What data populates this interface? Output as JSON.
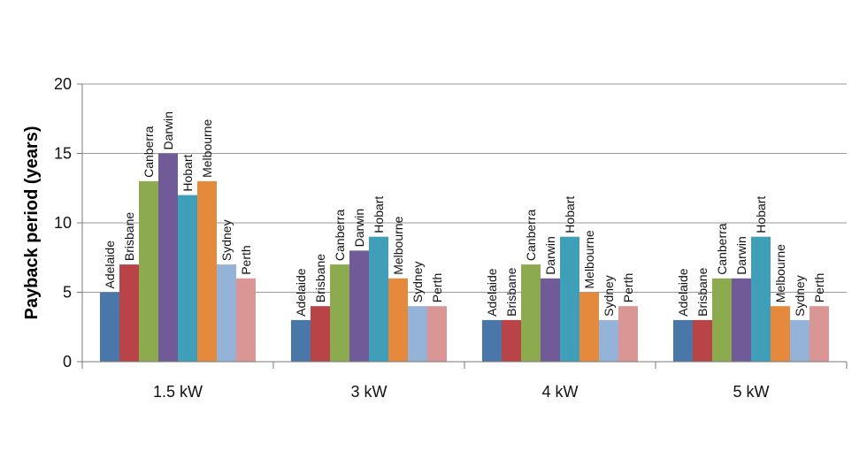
{
  "chart_data": {
    "type": "bar",
    "title": "",
    "xlabel": "",
    "ylabel": "Payback period (years)",
    "ylim": [
      0,
      20
    ],
    "yticks": [
      0,
      5,
      10,
      15,
      20
    ],
    "grid": true,
    "legend": "none",
    "categories": [
      "1.5 kW",
      "3 kW",
      "4 kW",
      "5 kW"
    ],
    "series": [
      {
        "name": "Adelaide",
        "color": "#4a77a9",
        "values": [
          5,
          3,
          3,
          3
        ]
      },
      {
        "name": "Brisbane",
        "color": "#b84447",
        "values": [
          7,
          4,
          3,
          3
        ]
      },
      {
        "name": "Canberra",
        "color": "#8cab4e",
        "values": [
          13,
          7,
          7,
          6
        ]
      },
      {
        "name": "Darwin",
        "color": "#715a98",
        "values": [
          15,
          8,
          6,
          6
        ]
      },
      {
        "name": "Hobart",
        "color": "#3f9eb8",
        "values": [
          12,
          9,
          9,
          9
        ]
      },
      {
        "name": "Melbourne",
        "color": "#e58a3c",
        "values": [
          13,
          6,
          5,
          4
        ]
      },
      {
        "name": "Sydney",
        "color": "#95b2d8",
        "values": [
          7,
          4,
          3,
          3
        ]
      },
      {
        "name": "Perth",
        "color": "#d99695",
        "values": [
          6,
          4,
          4,
          4
        ]
      }
    ]
  }
}
